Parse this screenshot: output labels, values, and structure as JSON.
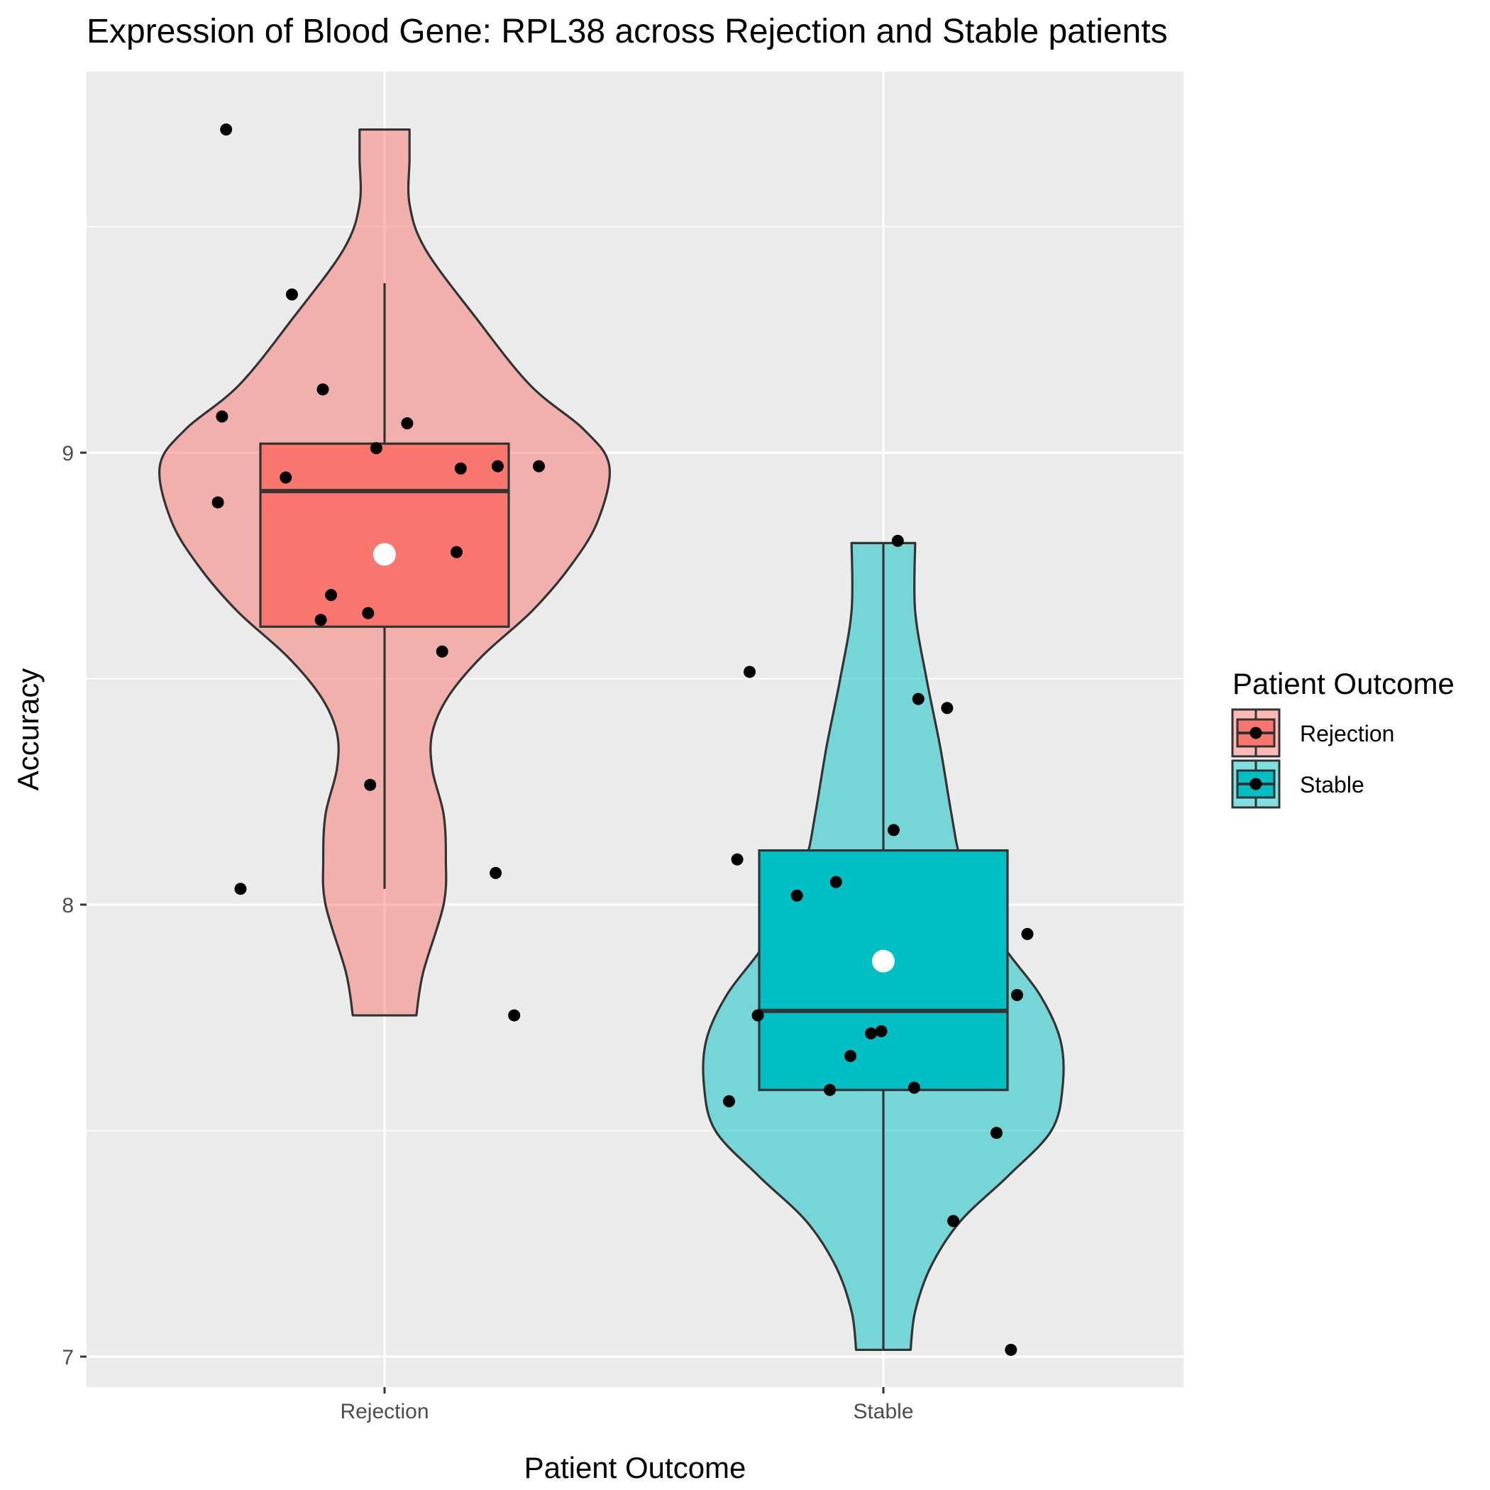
{
  "chart_data": {
    "type": "violin",
    "title": "Expression of Blood Gene:  RPL38  across Rejection and Stable patients",
    "xlabel": "Patient Outcome",
    "ylabel": "Accuracy",
    "categories": [
      "Rejection",
      "Stable"
    ],
    "y_ticks": [
      7,
      8,
      9
    ],
    "ylim": [
      6.95,
      9.78
    ],
    "grid": true,
    "legend": {
      "title": "Patient Outcome",
      "placement": "right",
      "entries": [
        "Rejection",
        "Stable"
      ]
    },
    "colors": {
      "Rejection": "#F8766D",
      "Stable": "#00BFC4",
      "panel": "#EBEBEB",
      "grid": "#FFFFFF",
      "outline": "#333333",
      "points": "#000000",
      "mean": "#FFFFFF"
    },
    "series": [
      {
        "name": "Rejection",
        "box": {
          "q1": 8.615,
          "median": 8.915,
          "q3": 9.02,
          "whisker_low": 8.035,
          "whisker_high": 9.375
        },
        "mean": 8.775,
        "violin_range": [
          7.755,
          9.715
        ],
        "violin_profile": [
          [
            7.755,
            0.14
          ],
          [
            7.85,
            0.17
          ],
          [
            8.0,
            0.26
          ],
          [
            8.1,
            0.27
          ],
          [
            8.2,
            0.26
          ],
          [
            8.3,
            0.21
          ],
          [
            8.38,
            0.21
          ],
          [
            8.46,
            0.28
          ],
          [
            8.55,
            0.43
          ],
          [
            8.65,
            0.65
          ],
          [
            8.75,
            0.82
          ],
          [
            8.85,
            0.94
          ],
          [
            8.97,
            0.99
          ],
          [
            9.05,
            0.88
          ],
          [
            9.15,
            0.64
          ],
          [
            9.3,
            0.4
          ],
          [
            9.45,
            0.18
          ],
          [
            9.55,
            0.11
          ],
          [
            9.65,
            0.11
          ],
          [
            9.715,
            0.11
          ]
        ],
        "points": [
          [
            -0.77,
            9.715
          ],
          [
            -0.45,
            9.35
          ],
          [
            -0.79,
            9.08
          ],
          [
            -0.81,
            8.89
          ],
          [
            -0.7,
            8.035
          ],
          [
            -0.3,
            9.14
          ],
          [
            0.11,
            9.065
          ],
          [
            -0.04,
            9.01
          ],
          [
            -0.48,
            8.945
          ],
          [
            0.37,
            8.965
          ],
          [
            0.55,
            8.97
          ],
          [
            0.75,
            8.97
          ],
          [
            0.35,
            8.78
          ],
          [
            -0.26,
            8.685
          ],
          [
            -0.08,
            8.645
          ],
          [
            -0.31,
            8.63
          ],
          [
            0.28,
            8.56
          ],
          [
            -0.07,
            8.265
          ],
          [
            0.54,
            8.07
          ],
          [
            0.63,
            7.755
          ]
        ]
      },
      {
        "name": "Stable",
        "box": {
          "q1": 7.59,
          "median": 7.765,
          "q3": 8.12,
          "whisker_low": 7.015,
          "whisker_high": 8.8
        },
        "mean": 7.875,
        "violin_range": [
          7.015,
          8.8
        ],
        "violin_profile": [
          [
            7.015,
            0.12
          ],
          [
            7.1,
            0.14
          ],
          [
            7.2,
            0.21
          ],
          [
            7.3,
            0.34
          ],
          [
            7.4,
            0.55
          ],
          [
            7.5,
            0.74
          ],
          [
            7.6,
            0.79
          ],
          [
            7.7,
            0.78
          ],
          [
            7.8,
            0.69
          ],
          [
            7.9,
            0.54
          ],
          [
            8.0,
            0.42
          ],
          [
            8.1,
            0.34
          ],
          [
            8.2,
            0.3
          ],
          [
            8.35,
            0.25
          ],
          [
            8.5,
            0.19
          ],
          [
            8.65,
            0.14
          ],
          [
            8.8,
            0.14
          ]
        ],
        "points": [
          [
            0.07,
            8.805
          ],
          [
            -0.65,
            8.515
          ],
          [
            0.17,
            8.455
          ],
          [
            0.31,
            8.435
          ],
          [
            0.05,
            8.165
          ],
          [
            -0.71,
            8.1
          ],
          [
            -0.23,
            8.05
          ],
          [
            -0.42,
            8.02
          ],
          [
            0.7,
            7.935
          ],
          [
            0.65,
            7.8
          ],
          [
            -0.61,
            7.755
          ],
          [
            -0.06,
            7.715
          ],
          [
            -0.01,
            7.72
          ],
          [
            -0.16,
            7.665
          ],
          [
            -0.26,
            7.59
          ],
          [
            0.15,
            7.595
          ],
          [
            -0.75,
            7.565
          ],
          [
            0.55,
            7.495
          ],
          [
            0.34,
            7.3
          ],
          [
            0.62,
            7.015
          ]
        ]
      }
    ]
  }
}
